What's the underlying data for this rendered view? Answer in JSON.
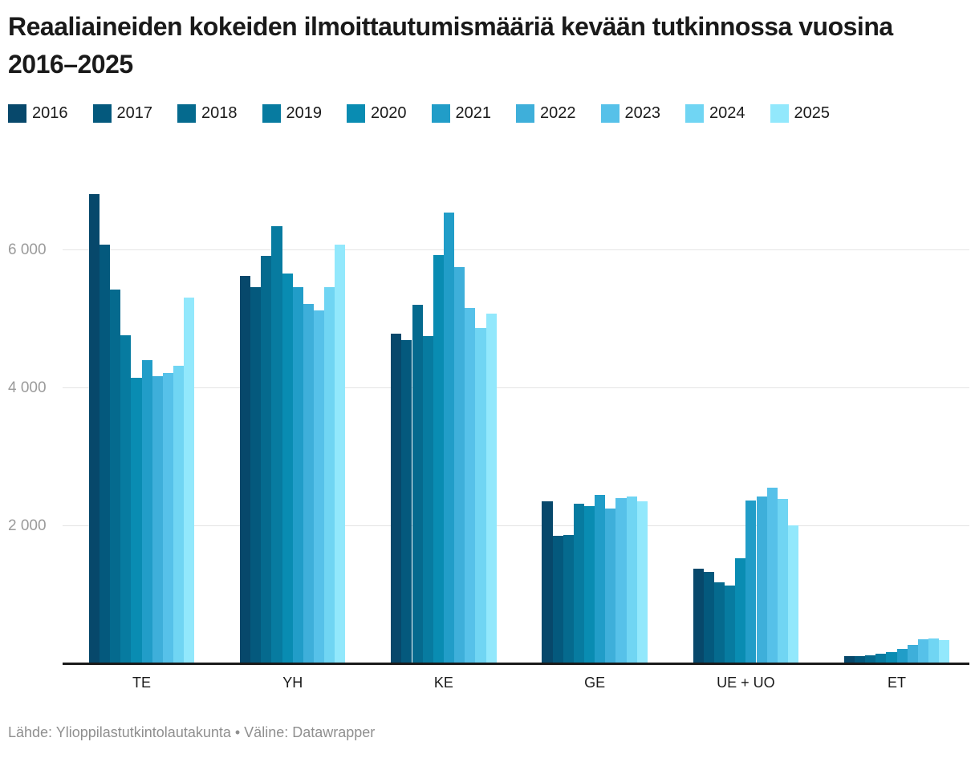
{
  "title": "Reaaliaineiden kokeiden ilmoittautumismääriä kevään tutkinnossa vuosina 2016–2025",
  "footer": {
    "text": "Lähde: Ylioppilastutkintolautakunta • Väline: Datawrapper"
  },
  "legend": {
    "position": "top",
    "years": [
      "2016",
      "2017",
      "2018",
      "2019",
      "2020",
      "2021",
      "2022",
      "2023",
      "2024",
      "2025"
    ]
  },
  "chart_data": {
    "type": "bar",
    "title": "Reaaliaineiden kokeiden ilmoittautumismääriä kevään tutkinnossa vuosina 2016–2025",
    "categories": [
      "TE",
      "YH",
      "KE",
      "GE",
      "UE + UO",
      "ET"
    ],
    "series": [
      {
        "name": "2016",
        "color": "#07486b",
        "values": [
          6810,
          5620,
          4780,
          2360,
          1380,
          110
        ]
      },
      {
        "name": "2017",
        "color": "#04597d",
        "values": [
          6080,
          5460,
          4690,
          1850,
          1330,
          110
        ]
      },
      {
        "name": "2018",
        "color": "#056a8e",
        "values": [
          5430,
          5910,
          5200,
          1870,
          1180,
          120
        ]
      },
      {
        "name": "2019",
        "color": "#077ba0",
        "values": [
          4760,
          6340,
          4750,
          2320,
          1130,
          145
        ]
      },
      {
        "name": "2020",
        "color": "#098cb2",
        "values": [
          4150,
          5660,
          5930,
          2280,
          1530,
          165
        ]
      },
      {
        "name": "2021",
        "color": "#219dc8",
        "values": [
          4400,
          5460,
          6540,
          2450,
          2370,
          220
        ]
      },
      {
        "name": "2022",
        "color": "#3eafda",
        "values": [
          4170,
          5210,
          5750,
          2250,
          2430,
          270
        ]
      },
      {
        "name": "2023",
        "color": "#56c1e9",
        "values": [
          4220,
          5120,
          5160,
          2400,
          2550,
          350
        ]
      },
      {
        "name": "2024",
        "color": "#70d5f3",
        "values": [
          4320,
          5460,
          4870,
          2420,
          2390,
          370
        ]
      },
      {
        "name": "2025",
        "color": "#92e8fc",
        "values": [
          5310,
          6080,
          5070,
          2360,
          2010,
          340
        ]
      }
    ],
    "ylim": [
      0,
      7000
    ],
    "yticks": [
      2000,
      4000,
      6000
    ],
    "ytick_labels": [
      "2 000",
      "4 000",
      "6 000"
    ],
    "grid": "horizontal",
    "legend_position": "top",
    "xlabel": "",
    "ylabel": ""
  }
}
